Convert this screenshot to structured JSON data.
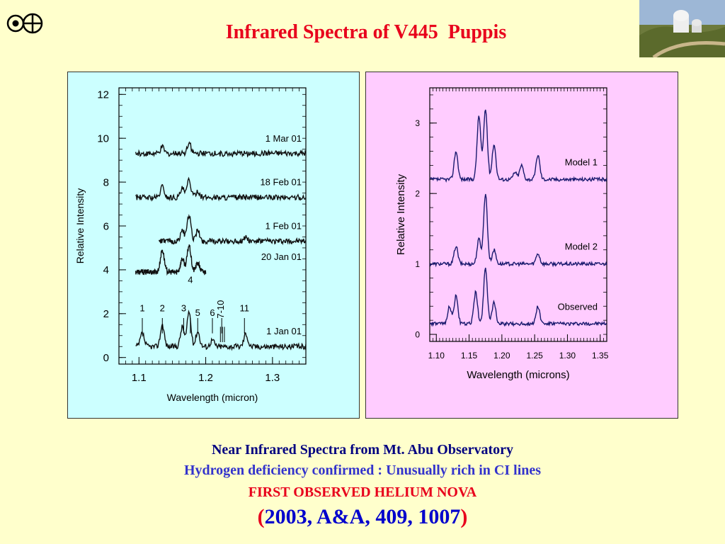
{
  "slide": {
    "title": "Infrared Spectra of V445  Puppis",
    "captions": {
      "line1": "Near Infrared Spectra from Mt. Abu Observatory",
      "line2": "Hydrogen deficiency confirmed :  Unusually rich in CI lines",
      "line3": "FIRST OBSERVED HELIUM NOVA",
      "line4_open": "(",
      "line4_text": "2003, A&A, 409, 1007",
      "line4_close": ")"
    },
    "logo_icon": "observatory-logo-icon",
    "photo_icon": "observatory-photo",
    "colors": {
      "title": "#e8001c",
      "left_panel": "#ccffff",
      "right_panel": "#ffccff",
      "background": "#ffffcc"
    }
  },
  "chart_data": [
    {
      "type": "line",
      "title": "",
      "xlabel": "Wavelength  (micron)",
      "ylabel": "Relative Intensity",
      "xlim": [
        1.07,
        1.35
      ],
      "ylim": [
        -0.3,
        12.3
      ],
      "xticks": [
        "1.1",
        "1.2",
        "1.3"
      ],
      "xtick_values": [
        1.1,
        1.2,
        1.3
      ],
      "yticks": [
        "0",
        "2",
        "4",
        "6",
        "8",
        "10",
        "12"
      ],
      "ytick_values": [
        0,
        2,
        4,
        6,
        8,
        10,
        12
      ],
      "series": [
        {
          "name": "1 Jan 01",
          "x_range": [
            1.095,
            1.35
          ],
          "baseline": 0.5,
          "peaks": [
            [
              1.105,
              0.6
            ],
            [
              1.135,
              1.0
            ],
            [
              1.165,
              0.9
            ],
            [
              1.175,
              1.6
            ],
            [
              1.188,
              0.7
            ],
            [
              1.21,
              0.3
            ],
            [
              1.26,
              0.6
            ]
          ]
        },
        {
          "name": "20 Jan 01",
          "x_range": [
            1.095,
            1.2
          ],
          "baseline": 3.9,
          "peaks": [
            [
              1.135,
              1.0
            ],
            [
              1.165,
              0.6
            ],
            [
              1.175,
              1.2
            ],
            [
              1.188,
              0.4
            ]
          ]
        },
        {
          "name": "1 Feb 01",
          "x_range": [
            1.13,
            1.35
          ],
          "baseline": 5.3,
          "peaks": [
            [
              1.165,
              0.5
            ],
            [
              1.175,
              1.2
            ],
            [
              1.188,
              0.5
            ],
            [
              1.26,
              0.2
            ]
          ]
        },
        {
          "name": "18 Feb 01",
          "x_range": [
            1.095,
            1.35
          ],
          "baseline": 7.3,
          "peaks": [
            [
              1.135,
              0.5
            ],
            [
              1.165,
              0.4
            ],
            [
              1.175,
              0.8
            ],
            [
              1.188,
              0.3
            ]
          ]
        },
        {
          "name": "1 Mar 01",
          "x_range": [
            1.095,
            1.35
          ],
          "baseline": 9.3,
          "peaks": [
            [
              1.135,
              0.3
            ],
            [
              1.175,
              0.5
            ]
          ]
        }
      ],
      "line_markers": [
        {
          "label": "1",
          "x": 1.105
        },
        {
          "label": "2",
          "x": 1.135
        },
        {
          "label": "3",
          "x": 1.167
        },
        {
          "label": "4",
          "x": 1.177
        },
        {
          "label": "5",
          "x": 1.188
        },
        {
          "label": "6",
          "x": 1.21
        },
        {
          "label": "7-10",
          "x": 1.224
        },
        {
          "label": "11",
          "x": 1.258
        }
      ]
    },
    {
      "type": "line",
      "title": "",
      "xlabel": "Wavelength (microns)",
      "ylabel": "Relative Intensity",
      "xlim": [
        1.09,
        1.36
      ],
      "ylim": [
        -0.1,
        3.5
      ],
      "xticks": [
        "1.10",
        "1.15",
        "1.20",
        "1.25",
        "1.30",
        "1.35"
      ],
      "xtick_values": [
        1.1,
        1.15,
        1.2,
        1.25,
        1.3,
        1.35
      ],
      "yticks": [
        "0",
        "1",
        "2",
        "3"
      ],
      "ytick_values": [
        0,
        1,
        2,
        3
      ],
      "series": [
        {
          "name": "Model 1",
          "x_range": [
            1.09,
            1.36
          ],
          "baseline": 2.2,
          "peaks": [
            [
              1.13,
              0.4
            ],
            [
              1.165,
              0.9
            ],
            [
              1.175,
              1.0
            ],
            [
              1.188,
              0.5
            ],
            [
              1.22,
              0.1
            ],
            [
              1.23,
              0.2
            ],
            [
              1.255,
              0.35
            ]
          ]
        },
        {
          "name": "Model 2",
          "x_range": [
            1.09,
            1.36
          ],
          "baseline": 1.0,
          "peaks": [
            [
              1.13,
              0.25
            ],
            [
              1.165,
              0.35
            ],
            [
              1.175,
              1.0
            ],
            [
              1.188,
              0.2
            ],
            [
              1.255,
              0.15
            ]
          ]
        },
        {
          "name": "Observed",
          "x_range": [
            1.09,
            1.36
          ],
          "baseline": 0.15,
          "peaks": [
            [
              1.12,
              0.25
            ],
            [
              1.13,
              0.4
            ],
            [
              1.16,
              0.45
            ],
            [
              1.175,
              0.8
            ],
            [
              1.188,
              0.3
            ],
            [
              1.255,
              0.25
            ]
          ]
        }
      ]
    }
  ]
}
